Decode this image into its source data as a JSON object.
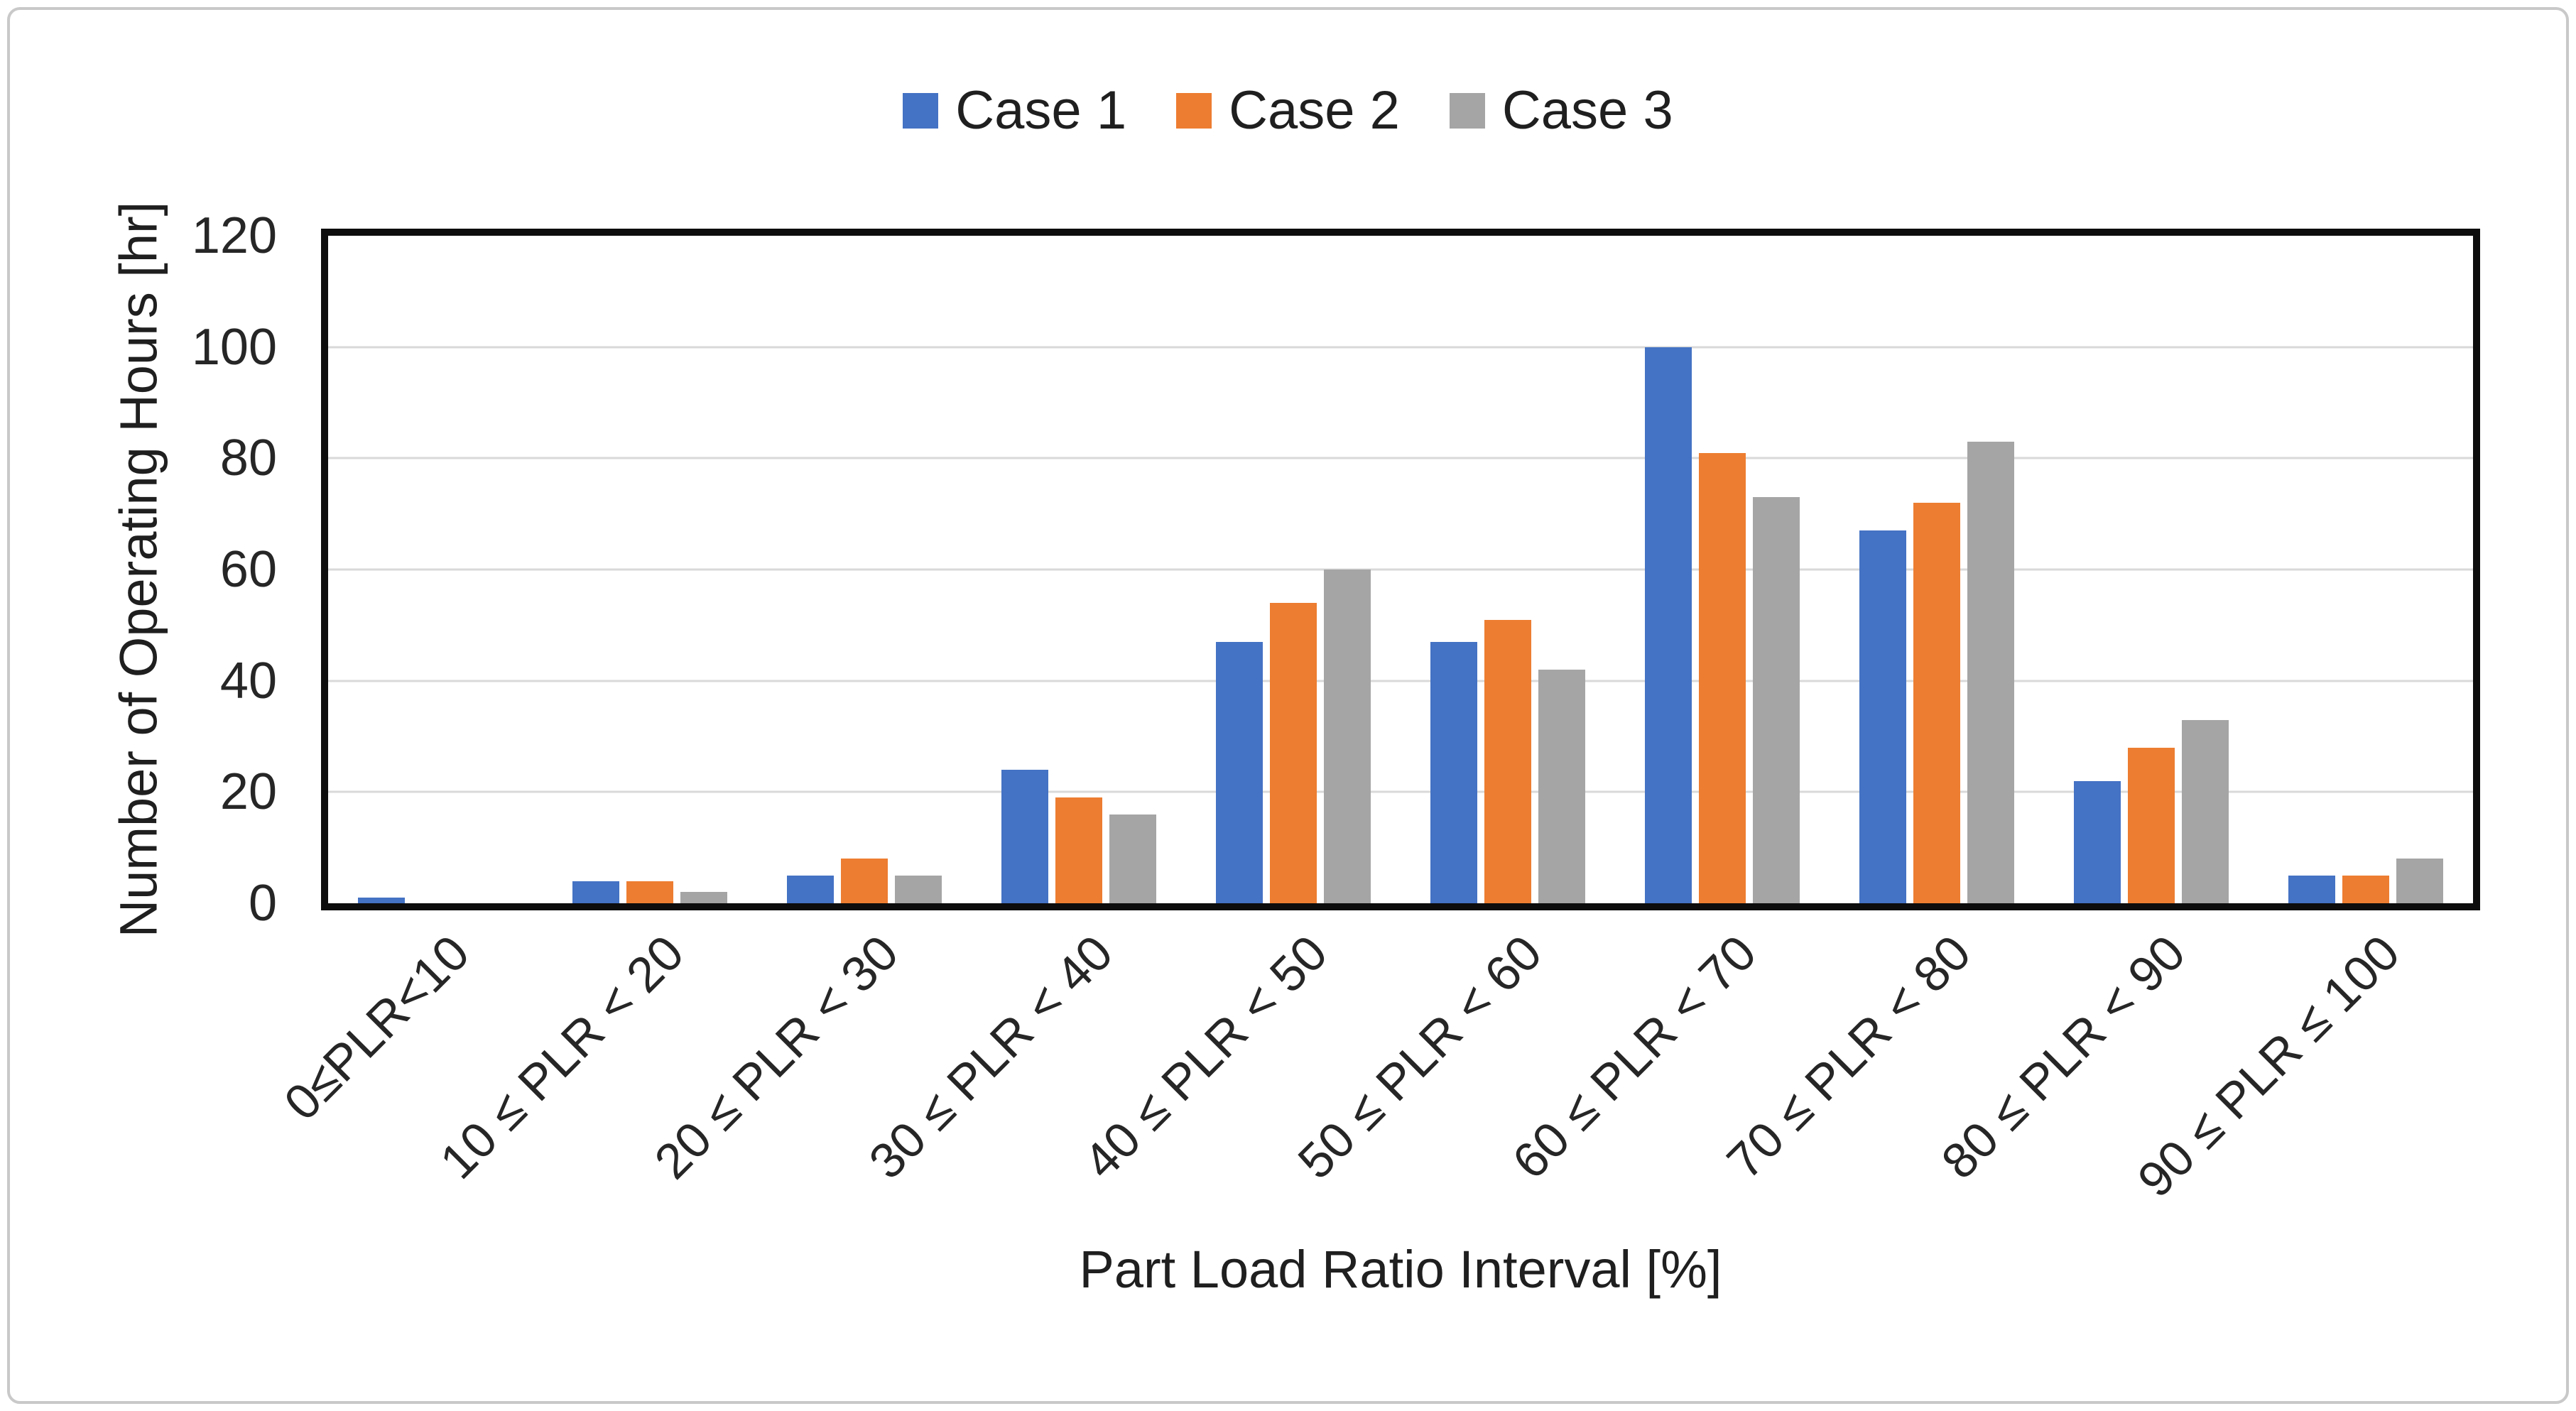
{
  "chart_data": {
    "type": "bar",
    "title": "",
    "xlabel": "Part Load Ratio Interval [%]",
    "ylabel": "Number of Operating Hours [hr]",
    "ylim": [
      0,
      120
    ],
    "yticks": [
      0,
      20,
      40,
      60,
      80,
      100,
      120
    ],
    "grid": true,
    "legend_position": "top-center",
    "categories": [
      "0≤PLR<10",
      "10 ≤ PLR < 20",
      "20 ≤ PLR < 30",
      "30 ≤ PLR < 40",
      "40 ≤ PLR < 50",
      "50 ≤ PLR < 60",
      "60 ≤ PLR < 70",
      "70 ≤ PLR < 80",
      "80 ≤ PLR < 90",
      "90 ≤ PLR ≤ 100"
    ],
    "series": [
      {
        "name": "Case 1",
        "color": "#4472C4",
        "values": [
          1,
          4,
          5,
          24,
          47,
          47,
          100,
          67,
          22,
          5
        ]
      },
      {
        "name": "Case 2",
        "color": "#ED7D31",
        "values": [
          0,
          4,
          8,
          19,
          54,
          51,
          81,
          72,
          28,
          5
        ]
      },
      {
        "name": "Case 3",
        "color": "#A5A5A5",
        "values": [
          0,
          2,
          5,
          16,
          60,
          42,
          73,
          83,
          33,
          8
        ]
      }
    ]
  },
  "colors": {
    "grid": "#d9d9d9",
    "plot_border": "#0d0d0d",
    "frame_border": "#c9c9c9",
    "text": "#262626"
  }
}
